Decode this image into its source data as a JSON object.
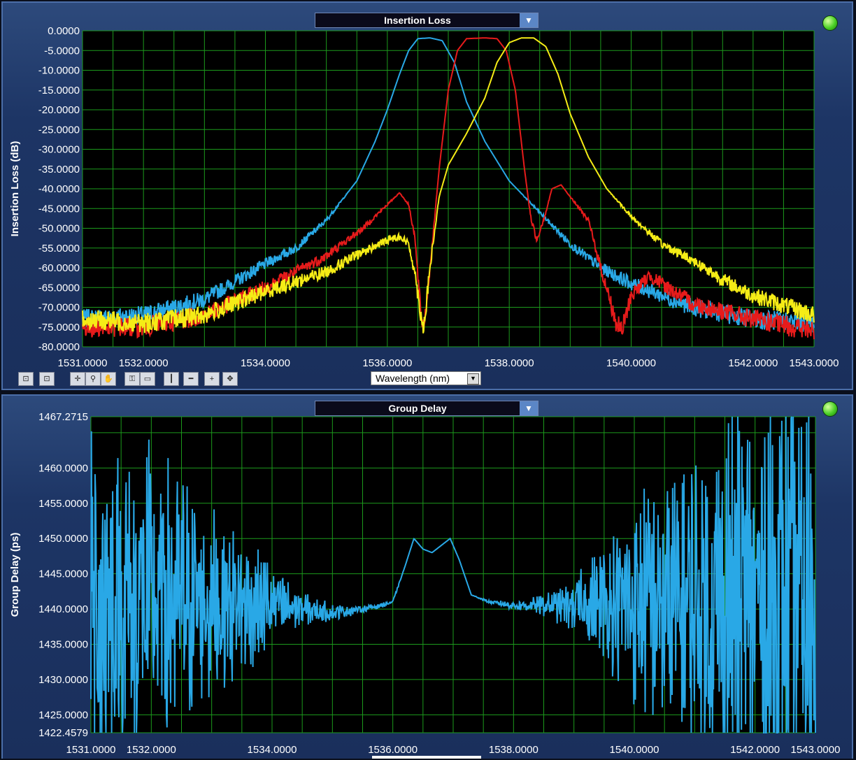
{
  "top_panel": {
    "title": "Insertion Loss",
    "ylabel": "Insertion Loss (dB)",
    "xaxis_selector": "Wavelength (nm)",
    "status_led": "green",
    "toolbar": [
      "zoom-x-icon",
      "zoom-y-icon",
      "cursor-move-icon",
      "zoom-tool-icon",
      "pan-hand-icon",
      "key-icon",
      "rectangle-icon",
      "vertical-cursor-icon",
      "horizontal-cursor-icon",
      "add-cursor-icon",
      "center-cursor-icon"
    ]
  },
  "bottom_panel": {
    "title": "Group Delay",
    "ylabel": "Group Delay (ps)",
    "status_led": "green"
  },
  "colors": {
    "blue": "#29a8e6",
    "red": "#e61b1b",
    "yellow": "#f5ec16",
    "grid": "#1c9a1c",
    "plot_bg": "#000000"
  },
  "chart_data": [
    {
      "type": "line",
      "title": "Insertion Loss",
      "xlabel": "",
      "ylabel": "Insertion Loss (dB)",
      "xlim": [
        1531.0,
        1543.0
      ],
      "ylim": [
        -80.0,
        0.0
      ],
      "x_ticks": [
        "1531.0000",
        "1532.0000",
        "1534.0000",
        "1536.0000",
        "1538.0000",
        "1540.0000",
        "1542.0000",
        "1543.0000"
      ],
      "x_tick_values": [
        1531,
        1532,
        1534,
        1536,
        1538,
        1540,
        1542,
        1543
      ],
      "y_ticks": [
        "0.0000",
        "-5.0000",
        "-10.0000",
        "-15.0000",
        "-20.0000",
        "-25.0000",
        "-30.0000",
        "-35.0000",
        "-40.0000",
        "-45.0000",
        "-50.0000",
        "-55.0000",
        "-60.0000",
        "-65.0000",
        "-70.0000",
        "-75.0000",
        "-80.0000"
      ],
      "y_tick_values": [
        0,
        -5,
        -10,
        -15,
        -20,
        -25,
        -30,
        -35,
        -40,
        -45,
        -50,
        -55,
        -60,
        -65,
        -70,
        -75,
        -80
      ],
      "grid": true,
      "series": [
        {
          "color": "#29a8e6",
          "x": [
            1531.0,
            1532.0,
            1533.0,
            1534.0,
            1534.5,
            1535.0,
            1535.5,
            1535.8,
            1536.0,
            1536.2,
            1536.35,
            1536.5,
            1536.7,
            1536.9,
            1537.1,
            1537.3,
            1537.6,
            1538.0,
            1538.5,
            1539.0,
            1539.5,
            1540.0,
            1540.5,
            1541.0,
            1542.0,
            1543.0
          ],
          "y": [
            -73,
            -72,
            -68,
            -59,
            -55,
            -48,
            -38,
            -28,
            -20,
            -11,
            -5,
            -2,
            -1.8,
            -2.5,
            -8,
            -18,
            -28,
            -38,
            -46,
            -54,
            -60,
            -64,
            -67,
            -70,
            -73,
            -74
          ]
        },
        {
          "color": "#e61b1b",
          "x": [
            1531.0,
            1532.0,
            1533.0,
            1534.0,
            1535.0,
            1535.6,
            1536.0,
            1536.2,
            1536.35,
            1536.45,
            1536.5,
            1536.55,
            1536.6,
            1536.7,
            1536.85,
            1537.0,
            1537.15,
            1537.3,
            1537.6,
            1537.8,
            1537.95,
            1538.1,
            1538.25,
            1538.35,
            1538.45,
            1538.6,
            1538.7,
            1538.85,
            1539.0,
            1539.3,
            1539.5,
            1539.65,
            1539.75,
            1539.85,
            1540.0,
            1540.3,
            1540.6,
            1541.0,
            1542.0,
            1543.0
          ],
          "y": [
            -75,
            -75,
            -72,
            -65,
            -57,
            -50,
            -44,
            -41,
            -44,
            -52,
            -62,
            -72,
            -75,
            -60,
            -35,
            -15,
            -5,
            -2,
            -1.8,
            -2,
            -5,
            -15,
            -35,
            -47,
            -53,
            -46,
            -40,
            -39,
            -42,
            -48,
            -60,
            -68,
            -74,
            -76,
            -67,
            -62,
            -65,
            -69,
            -73,
            -76
          ]
        },
        {
          "color": "#f5ec16",
          "x": [
            1531.0,
            1532.0,
            1533.0,
            1534.0,
            1535.0,
            1535.6,
            1536.0,
            1536.2,
            1536.35,
            1536.45,
            1536.55,
            1536.6,
            1536.7,
            1536.85,
            1537.0,
            1537.3,
            1537.6,
            1537.8,
            1538.0,
            1538.2,
            1538.4,
            1538.6,
            1538.8,
            1539.0,
            1539.3,
            1539.6,
            1540.0,
            1540.5,
            1541.0,
            1541.5,
            1542.0,
            1543.0
          ],
          "y": [
            -73,
            -74,
            -72,
            -66,
            -61,
            -56,
            -53,
            -52,
            -54,
            -61,
            -72,
            -75,
            -60,
            -42,
            -34,
            -26,
            -17,
            -8,
            -3,
            -1.8,
            -1.8,
            -4,
            -11,
            -21,
            -32,
            -40,
            -47,
            -54,
            -58,
            -63,
            -67,
            -72
          ]
        }
      ]
    },
    {
      "type": "line",
      "title": "Group Delay",
      "xlabel": "",
      "ylabel": "Group Delay (ps)",
      "xlim": [
        1531.0,
        1543.0
      ],
      "ylim": [
        1422.4579,
        1467.2715
      ],
      "x_ticks": [
        "1531.0000",
        "1532.0000",
        "1534.0000",
        "1536.0000",
        "1538.0000",
        "1540.0000",
        "1542.0000",
        "1543.0000"
      ],
      "x_tick_values": [
        1531,
        1532,
        1534,
        1536,
        1538,
        1540,
        1542,
        1543
      ],
      "y_ticks": [
        "1467.2715",
        "1460.0000",
        "1455.0000",
        "1450.0000",
        "1445.0000",
        "1440.0000",
        "1435.0000",
        "1430.0000",
        "1425.0000",
        "1422.4579"
      ],
      "y_tick_values": [
        1467.2715,
        1460,
        1455,
        1450,
        1445,
        1440,
        1435,
        1430,
        1425,
        1422.4579
      ],
      "grid": true,
      "series": [
        {
          "color": "#29a8e6",
          "x": [
            1531.0,
            1532.0,
            1533.0,
            1534.0,
            1534.5,
            1535.0,
            1535.5,
            1535.8,
            1536.0,
            1536.2,
            1536.35,
            1536.5,
            1536.65,
            1536.8,
            1536.95,
            1537.1,
            1537.3,
            1537.6,
            1538.0,
            1538.5,
            1539.0,
            1539.5,
            1540.0,
            1541.0,
            1542.0,
            1543.0
          ],
          "y": [
            1441,
            1441,
            1441,
            1440.5,
            1440,
            1439.5,
            1440,
            1440.5,
            1441,
            1446,
            1450,
            1448.5,
            1448,
            1449,
            1450,
            1447,
            1442,
            1441,
            1440.5,
            1440.5,
            1440.5,
            1441,
            1441,
            1441,
            1441,
            1441
          ],
          "noise_amplitude": [
            22,
            18,
            12,
            5,
            2,
            1,
            0.4,
            0.3,
            0.2,
            0,
            0,
            0,
            0,
            0,
            0,
            0,
            0,
            0.2,
            0.5,
            1.2,
            3,
            7,
            12,
            18,
            26,
            24
          ]
        }
      ]
    }
  ]
}
